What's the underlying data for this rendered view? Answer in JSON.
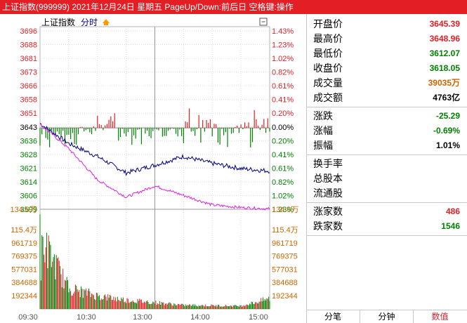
{
  "window": {
    "title": "上证指数(999999) 2021年12月24日 星期五 PageUp/Down:前后日 空格键:操作"
  },
  "chart_header": {
    "index_name": "上证指数",
    "period": "分时",
    "close_symbol": "▢"
  },
  "price_axis": {
    "left": [
      "3696",
      "3688",
      "3681",
      "3673",
      "3666",
      "3658",
      "3651",
      "3643",
      "3636",
      "3628",
      "3621",
      "3614",
      "3606",
      "3599"
    ],
    "right": [
      "1.43%",
      "1.23%",
      "1.02%",
      "0.82%",
      "0.61%",
      "0.41%",
      "0.20%",
      "0.00%",
      "0.20%",
      "0.41%",
      "0.61%",
      "0.82%",
      "1.02%",
      "1.23%"
    ],
    "bottom_left": "134.6万",
    "bottom_right": "134.6万"
  },
  "volume_axis": {
    "left": [
      "115.4万",
      "961719",
      "769375",
      "577031",
      "384688",
      "192344"
    ],
    "right": [
      "115.4万",
      "961719",
      "769375",
      "577031",
      "384688",
      "192344"
    ]
  },
  "time_axis": [
    "09:30",
    "10:30",
    "13:00",
    "14:00",
    "15:00"
  ],
  "stats": [
    {
      "label": "开盘价",
      "value": "3645.39",
      "color": "#e31e24"
    },
    {
      "label": "最高价",
      "value": "3648.96",
      "color": "#e31e24"
    },
    {
      "label": "最低价",
      "value": "3612.07",
      "color": "#008000"
    },
    {
      "label": "收盘价",
      "value": "3618.05",
      "color": "#008000"
    },
    {
      "label": "成交量",
      "value": "39035万",
      "color": "#cc6600"
    },
    {
      "label": "成交额",
      "value": "4763亿",
      "color": "#000000"
    }
  ],
  "changes": [
    {
      "label": "涨跌",
      "value": "-25.29",
      "color": "#008000"
    },
    {
      "label": "涨幅",
      "value": "-0.69%",
      "color": "#008000"
    },
    {
      "label": "振幅",
      "value": "1.01%",
      "color": "#000000"
    }
  ],
  "extra": [
    {
      "label": "换手率",
      "value": ""
    },
    {
      "label": "总股本",
      "value": ""
    },
    {
      "label": "流通股",
      "value": ""
    }
  ],
  "breadth": [
    {
      "label": "涨家数",
      "value": "486",
      "color": "#e31e24"
    },
    {
      "label": "跌家数",
      "value": "1546",
      "color": "#008000"
    }
  ],
  "tabs": [
    {
      "label": "分笔",
      "active": false
    },
    {
      "label": "分钟",
      "active": false
    },
    {
      "label": "数值",
      "active": true
    }
  ],
  "colors": {
    "up": "#e31e24",
    "down": "#008000",
    "price_line": "#000080",
    "avg_line": "#e020e0"
  },
  "chart_data": {
    "type": "line",
    "prev_close": 3643,
    "ylim": [
      3596,
      3699
    ],
    "x": [
      "09:30",
      "10:00",
      "10:30",
      "11:00",
      "11:30/13:00",
      "13:30",
      "14:00",
      "14:30",
      "15:00"
    ],
    "series": [
      {
        "name": "上证指数",
        "values": [
          3645.4,
          3634.0,
          3626.5,
          3617.0,
          3621.5,
          3626.5,
          3622.5,
          3619.5,
          3618.1
        ]
      },
      {
        "name": "均价",
        "values": [
          3645.4,
          3631.0,
          3613.0,
          3603.0,
          3609.5,
          3604.0,
          3598.5,
          3597.0,
          3596.2
        ]
      }
    ],
    "volume": {
      "ylim": [
        0,
        1346000
      ],
      "values": [
        1050000,
        300000,
        190000,
        130000,
        95000,
        55000,
        50000,
        45000,
        150000
      ]
    },
    "deviation": {
      "up": [
        3652,
        3660,
        3651
      ],
      "down": [
        3636,
        3639,
        3637
      ]
    }
  }
}
